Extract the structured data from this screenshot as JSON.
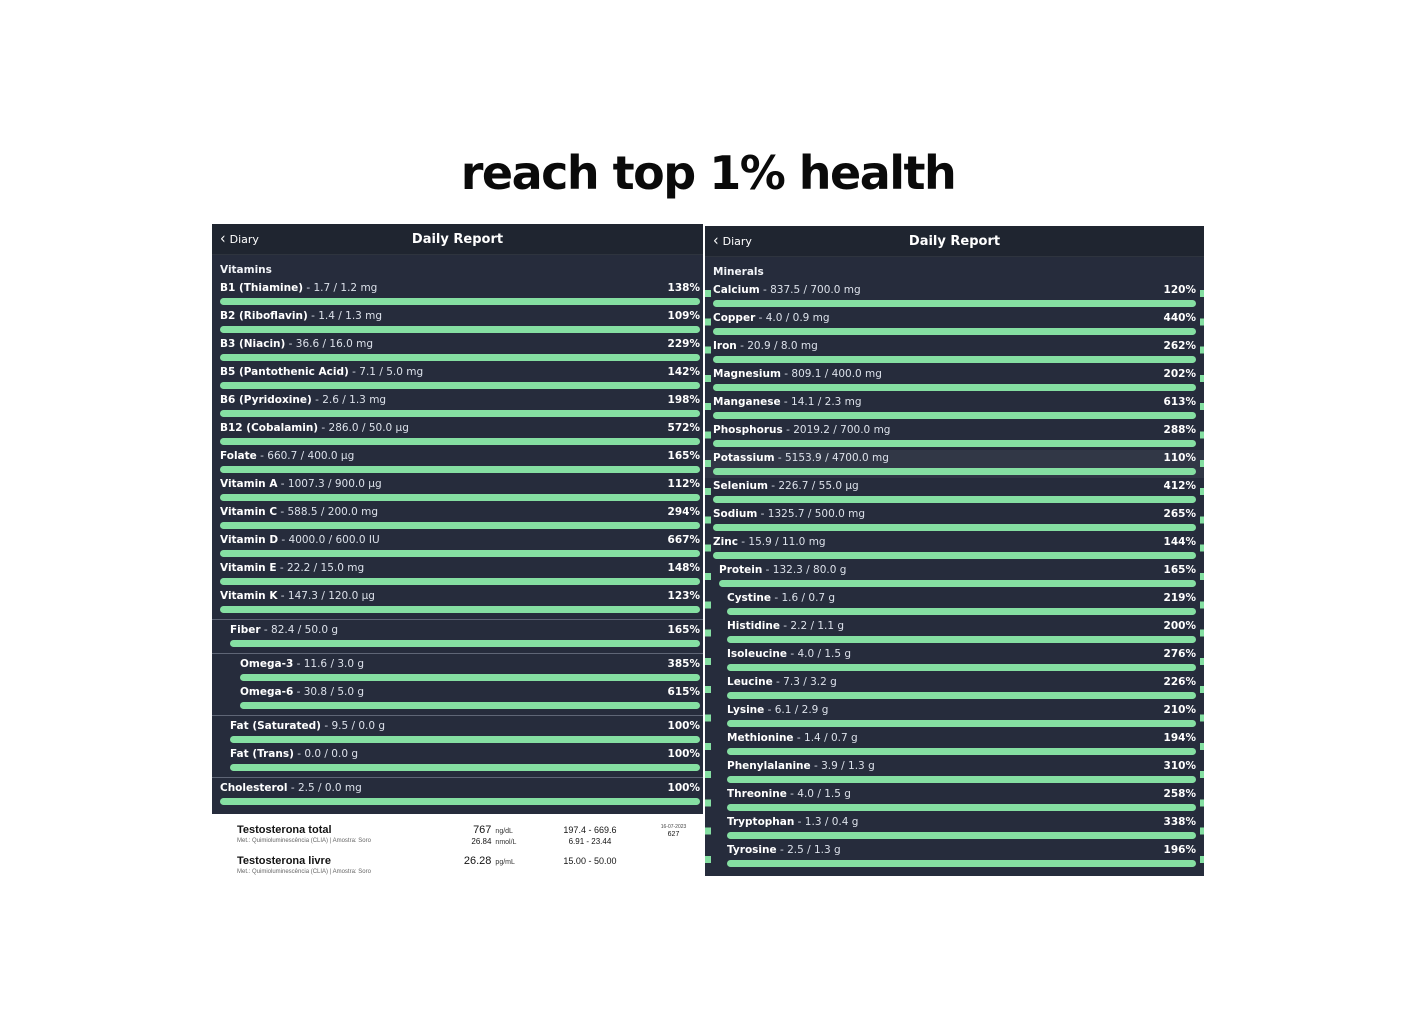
{
  "page": {
    "title": "reach top 1% health"
  },
  "colors": {
    "panel_bg": "#262c3c",
    "header_bg": "#1f2530",
    "accent_green": "#85dfa2",
    "page_bg": "#ffffff"
  },
  "icons": {
    "back_chevron": "‹"
  },
  "left_panel": {
    "nav": {
      "back_label": "Diary",
      "title": "Daily Report"
    },
    "section_label": "Vitamins",
    "rows": [
      {
        "name": "B1 (Thiamine)",
        "value": "- 1.7 / 1.2 mg",
        "percent": "138%",
        "indent": 0
      },
      {
        "name": "B2 (Riboflavin)",
        "value": "- 1.4 / 1.3 mg",
        "percent": "109%",
        "indent": 0
      },
      {
        "name": "B3 (Niacin)",
        "value": "- 36.6 / 16.0 mg",
        "percent": "229%",
        "indent": 0
      },
      {
        "name": "B5 (Pantothenic Acid)",
        "value": "- 7.1 / 5.0 mg",
        "percent": "142%",
        "indent": 0
      },
      {
        "name": "B6 (Pyridoxine)",
        "value": "- 2.6 / 1.3 mg",
        "percent": "198%",
        "indent": 0
      },
      {
        "name": "B12 (Cobalamin)",
        "value": "- 286.0 / 50.0 µg",
        "percent": "572%",
        "indent": 0
      },
      {
        "name": "Folate",
        "value": "- 660.7 / 400.0 µg",
        "percent": "165%",
        "indent": 0
      },
      {
        "name": "Vitamin A",
        "value": "- 1007.3 / 900.0 µg",
        "percent": "112%",
        "indent": 0
      },
      {
        "name": "Vitamin C",
        "value": "- 588.5 / 200.0 mg",
        "percent": "294%",
        "indent": 0
      },
      {
        "name": "Vitamin D",
        "value": "- 4000.0 / 600.0 IU",
        "percent": "667%",
        "indent": 0
      },
      {
        "name": "Vitamin E",
        "value": "- 22.2 / 15.0 mg",
        "percent": "148%",
        "indent": 0
      },
      {
        "name": "Vitamin K",
        "value": "- 147.3 / 120.0 µg",
        "percent": "123%",
        "indent": 0
      },
      {
        "name": "Fiber",
        "value": "- 82.4 / 50.0 g",
        "percent": "165%",
        "indent": 1,
        "divider_before": true
      },
      {
        "name": "Omega-3",
        "value": "- 11.6 / 3.0 g",
        "percent": "385%",
        "indent": 2,
        "divider_before": true
      },
      {
        "name": "Omega-6",
        "value": "- 30.8 / 5.0 g",
        "percent": "615%",
        "indent": 2
      },
      {
        "name": "Fat (Saturated)",
        "value": "- 9.5 / 0.0 g",
        "percent": "100%",
        "indent": 1,
        "divider_before": true
      },
      {
        "name": "Fat (Trans)",
        "value": "- 0.0 / 0.0 g",
        "percent": "100%",
        "indent": 1
      },
      {
        "name": "Cholesterol",
        "value": "- 2.5 / 0.0 mg",
        "percent": "100%",
        "indent": 0,
        "divider_before": true
      }
    ]
  },
  "lab": {
    "rows": [
      {
        "name": "Testosterona total",
        "method": "Met.: Quimioluminescência (CLIA) | Amostra: Soro",
        "value_main": "767",
        "unit_main": "ng/dL",
        "value_alt": "26.84",
        "unit_alt": "nmol/L",
        "ref_main": "197.4  -  669.6",
        "ref_alt": "6.91  -  23.44",
        "date": "16-07-2023",
        "code": "627"
      },
      {
        "name": "Testosterona livre",
        "method": "Met.: Quimioluminescência (CLIA) | Amostra: Soro",
        "value_main": "26.28",
        "unit_main": "pg/mL",
        "ref_main": "15.00  -  50.00"
      }
    ]
  },
  "right_panel": {
    "nav": {
      "back_label": "Diary",
      "title": "Daily Report"
    },
    "section_label": "Minerals",
    "rows": [
      {
        "name": "Calcium",
        "value": "- 837.5 / 700.0 mg",
        "percent": "120%",
        "indent": 0
      },
      {
        "name": "Copper",
        "value": "- 4.0 / 0.9 mg",
        "percent": "440%",
        "indent": 0
      },
      {
        "name": "Iron",
        "value": "- 20.9 / 8.0 mg",
        "percent": "262%",
        "indent": 0
      },
      {
        "name": "Magnesium",
        "value": "- 809.1 / 400.0 mg",
        "percent": "202%",
        "indent": 0
      },
      {
        "name": "Manganese",
        "value": "- 14.1 / 2.3 mg",
        "percent": "613%",
        "indent": 0
      },
      {
        "name": "Phosphorus",
        "value": "- 2019.2 / 700.0 mg",
        "percent": "288%",
        "indent": 0
      },
      {
        "name": "Potassium",
        "value": "- 5153.9 / 4700.0 mg",
        "percent": "110%",
        "indent": 0,
        "highlight": true
      },
      {
        "name": "Selenium",
        "value": "- 226.7 / 55.0 µg",
        "percent": "412%",
        "indent": 0
      },
      {
        "name": "Sodium",
        "value": "- 1325.7 / 500.0 mg",
        "percent": "265%",
        "indent": 0
      },
      {
        "name": "Zinc",
        "value": "- 15.9 / 11.0 mg",
        "percent": "144%",
        "indent": 0
      },
      {
        "name": "Protein",
        "value": "- 132.3 / 80.0 g",
        "percent": "165%",
        "indent": 1
      },
      {
        "name": "Cystine",
        "value": "- 1.6 / 0.7 g",
        "percent": "219%",
        "indent": 2
      },
      {
        "name": "Histidine",
        "value": "- 2.2 / 1.1 g",
        "percent": "200%",
        "indent": 2
      },
      {
        "name": "Isoleucine",
        "value": "- 4.0 / 1.5 g",
        "percent": "276%",
        "indent": 2
      },
      {
        "name": "Leucine",
        "value": "- 7.3 / 3.2 g",
        "percent": "226%",
        "indent": 2
      },
      {
        "name": "Lysine",
        "value": "- 6.1 / 2.9 g",
        "percent": "210%",
        "indent": 2
      },
      {
        "name": "Methionine",
        "value": "- 1.4 / 0.7 g",
        "percent": "194%",
        "indent": 2
      },
      {
        "name": "Phenylalanine",
        "value": "- 3.9 / 1.3 g",
        "percent": "310%",
        "indent": 2
      },
      {
        "name": "Threonine",
        "value": "- 4.0 / 1.5 g",
        "percent": "258%",
        "indent": 2
      },
      {
        "name": "Tryptophan",
        "value": "- 1.3 / 0.4 g",
        "percent": "338%",
        "indent": 2
      },
      {
        "name": "Tyrosine",
        "value": "- 2.5 / 1.3 g",
        "percent": "196%",
        "indent": 2
      }
    ]
  }
}
